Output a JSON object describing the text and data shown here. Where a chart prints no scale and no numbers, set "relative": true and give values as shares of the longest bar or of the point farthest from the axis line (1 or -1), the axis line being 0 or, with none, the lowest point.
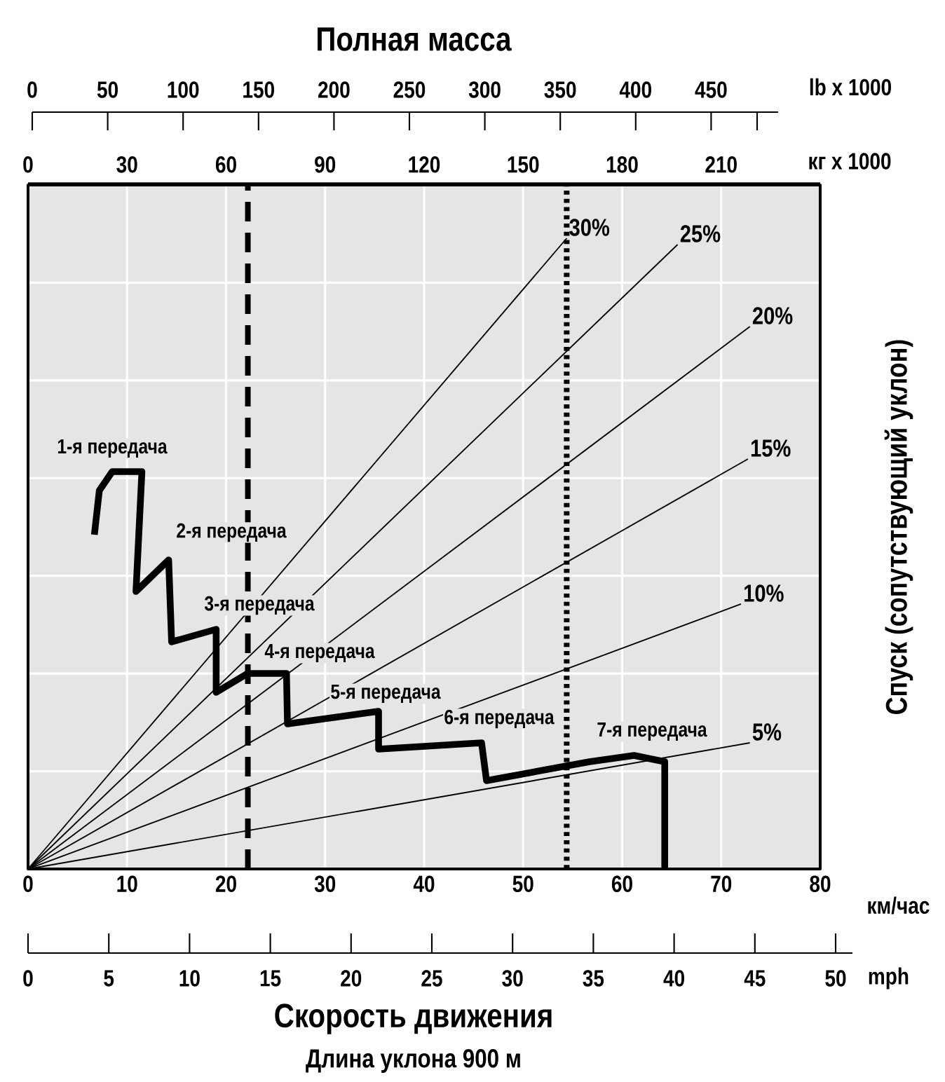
{
  "chart_data": {
    "type": "line",
    "relative": true,
    "title": "Полная масса",
    "xlabel": "км/час",
    "ylabel": "Спуск (сопутствующий уклон)",
    "x2label": "кг x 1000",
    "xlim": [
      0,
      80
    ],
    "xticks": [
      0,
      10,
      20,
      30,
      40,
      50,
      60,
      70,
      80
    ],
    "x2lim": [
      0,
      240
    ],
    "x2ticks": [
      0,
      30,
      60,
      90,
      120,
      150,
      180,
      210
    ],
    "grid": true,
    "series": [
      {
        "name": "30%",
        "color": "#000000",
        "x": [
          0,
          54.4
        ],
        "values": [
          0,
          1.0
        ]
      },
      {
        "name": "25%",
        "color": "#000000",
        "x": [
          0,
          65.6
        ],
        "values": [
          0,
          0.99
        ]
      },
      {
        "name": "20%",
        "color": "#000000",
        "x": [
          0,
          72.9
        ],
        "values": [
          0,
          0.86
        ]
      },
      {
        "name": "15%",
        "color": "#000000",
        "x": [
          0,
          72.7
        ],
        "values": [
          0,
          0.65
        ]
      },
      {
        "name": "10%",
        "color": "#000000",
        "x": [
          0,
          72.0
        ],
        "values": [
          0,
          0.42
        ]
      },
      {
        "name": "5%",
        "color": "#000000",
        "x": [
          0,
          72.9
        ],
        "values": [
          0,
          0.2
        ]
      },
      {
        "color": "#000000",
        "x": [
          6.7,
          7.2,
          8.5,
          10.1,
          11.5,
          10.9,
          14.2,
          14.5,
          19.0,
          19.0,
          22.2,
          26.1,
          26.2,
          35.4,
          35.4,
          45.8,
          46.3,
          56.7,
          61.2,
          64.3,
          64.3
        ],
        "values": [
          0.53,
          0.6,
          0.63,
          0.63,
          0.63,
          0.44,
          0.49,
          0.36,
          0.38,
          0.28,
          0.31,
          0.31,
          0.23,
          0.25,
          0.19,
          0.2,
          0.14,
          0.17,
          0.18,
          0.17,
          0.0
        ]
      }
    ],
    "ref_lines": [
      {
        "axis": "x",
        "value": 22.2,
        "line_style": "dashed"
      },
      {
        "axis": "x",
        "value": 54.4,
        "line_style": "dotted"
      }
    ],
    "annotations": [
      "1-я передача",
      "2-я передача",
      "3-я передача",
      "4-я передача",
      "5-я передача",
      "6-я передача",
      "7-я передача",
      "Скорость движения",
      "Длина уклона 900 м",
      "lb x 1000",
      "mph",
      "0",
      "50",
      "100",
      "150",
      "200",
      "250",
      "300",
      "350",
      "400",
      "450",
      "0",
      "5",
      "10",
      "15",
      "20",
      "25",
      "30",
      "35",
      "40",
      "45",
      "50"
    ]
  }
}
